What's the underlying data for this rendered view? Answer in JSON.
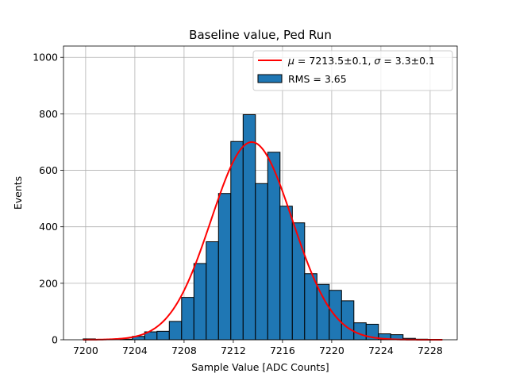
{
  "chart_data": {
    "type": "bar",
    "title": "Baseline value, Ped Run",
    "xlabel": "Sample Value [ADC Counts]",
    "ylabel": "Events",
    "xlim": [
      7198.2,
      7230.2
    ],
    "ylim": [
      0,
      1040
    ],
    "grid": true,
    "legend_position": "top-right",
    "x_ticks": [
      {
        "value": 7200,
        "label": "7200"
      },
      {
        "value": 7204,
        "label": "7204"
      },
      {
        "value": 7208,
        "label": "7208"
      },
      {
        "value": 7212,
        "label": "7212"
      },
      {
        "value": 7216,
        "label": "7216"
      },
      {
        "value": 7220,
        "label": "7220"
      },
      {
        "value": 7224,
        "label": "7224"
      },
      {
        "value": 7228,
        "label": "7228"
      }
    ],
    "y_ticks": [
      {
        "value": 0,
        "label": "0"
      },
      {
        "value": 200,
        "label": "200"
      },
      {
        "value": 400,
        "label": "400"
      },
      {
        "value": 600,
        "label": "600"
      },
      {
        "value": 800,
        "label": "800"
      },
      {
        "value": 1000,
        "label": "1000"
      }
    ],
    "histogram": {
      "name": "RMS = 3.65",
      "color": "#1f77b4",
      "edgecolor": "#000000",
      "bin_edges": [
        7199.8,
        7200.8,
        7201.8,
        7202.8,
        7203.8,
        7204.8,
        7205.8,
        7206.8,
        7207.8,
        7208.8,
        7209.8,
        7210.8,
        7211.8,
        7212.8,
        7213.8,
        7214.8,
        7215.8,
        7216.8,
        7217.8,
        7218.8,
        7219.8,
        7220.8,
        7221.8,
        7222.8,
        7223.8,
        7224.8,
        7225.8,
        7226.8,
        7227.8,
        7228.8
      ],
      "counts": [
        3,
        0,
        0,
        2,
        12,
        28,
        30,
        65,
        150,
        270,
        347,
        518,
        702,
        797,
        553,
        664,
        473,
        414,
        234,
        196,
        175,
        138,
        60,
        55,
        21,
        18,
        5,
        2,
        0
      ]
    },
    "fit": {
      "name": "$\\mu = $7213.5$\\pm$0.1, $\\sigma = $3.3$\\pm$0.1",
      "label_parts": {
        "mu_symbol": "μ",
        "sigma_symbol": "σ",
        "mu_text": " = 7213.5±0.1, ",
        "sigma_text": " = 3.3±0.1"
      },
      "type": "gaussian",
      "mu": 7213.5,
      "sigma": 3.3,
      "amplitude": 700,
      "x_range": [
        7199.8,
        7229
      ],
      "color": "#ff0000"
    },
    "legend": [
      {
        "kind": "line",
        "series": "fit"
      },
      {
        "kind": "patch",
        "series": "histogram",
        "text": "RMS = 3.65"
      }
    ]
  }
}
